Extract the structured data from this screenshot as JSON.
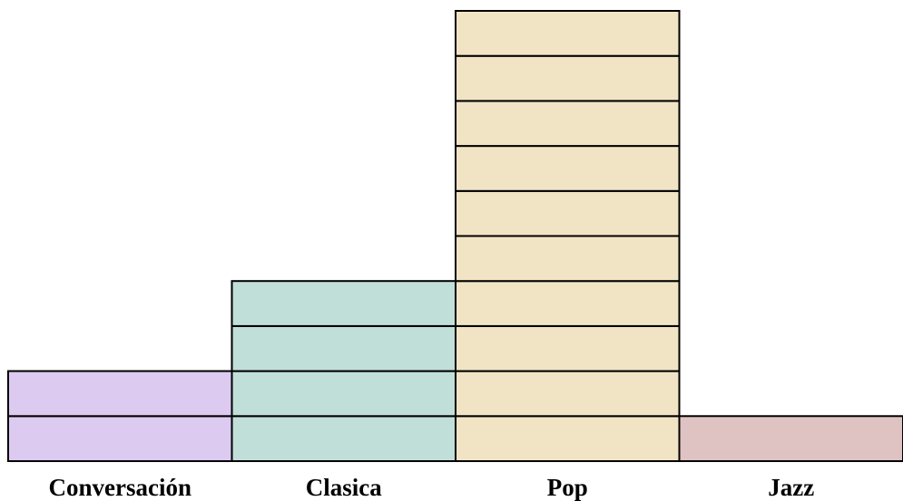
{
  "chart_data": {
    "type": "bar",
    "title": "",
    "xlabel": "",
    "ylabel": "",
    "categories": [
      "Conversación",
      "Clasica",
      "Pop",
      "Jazz"
    ],
    "values": [
      2,
      4,
      10,
      1
    ],
    "ylim": [
      0,
      10
    ],
    "grid": false,
    "legend": "none",
    "colors": [
      "#dccaf0",
      "#c1dfd9",
      "#f1e4c5",
      "#dfc2c2"
    ]
  }
}
